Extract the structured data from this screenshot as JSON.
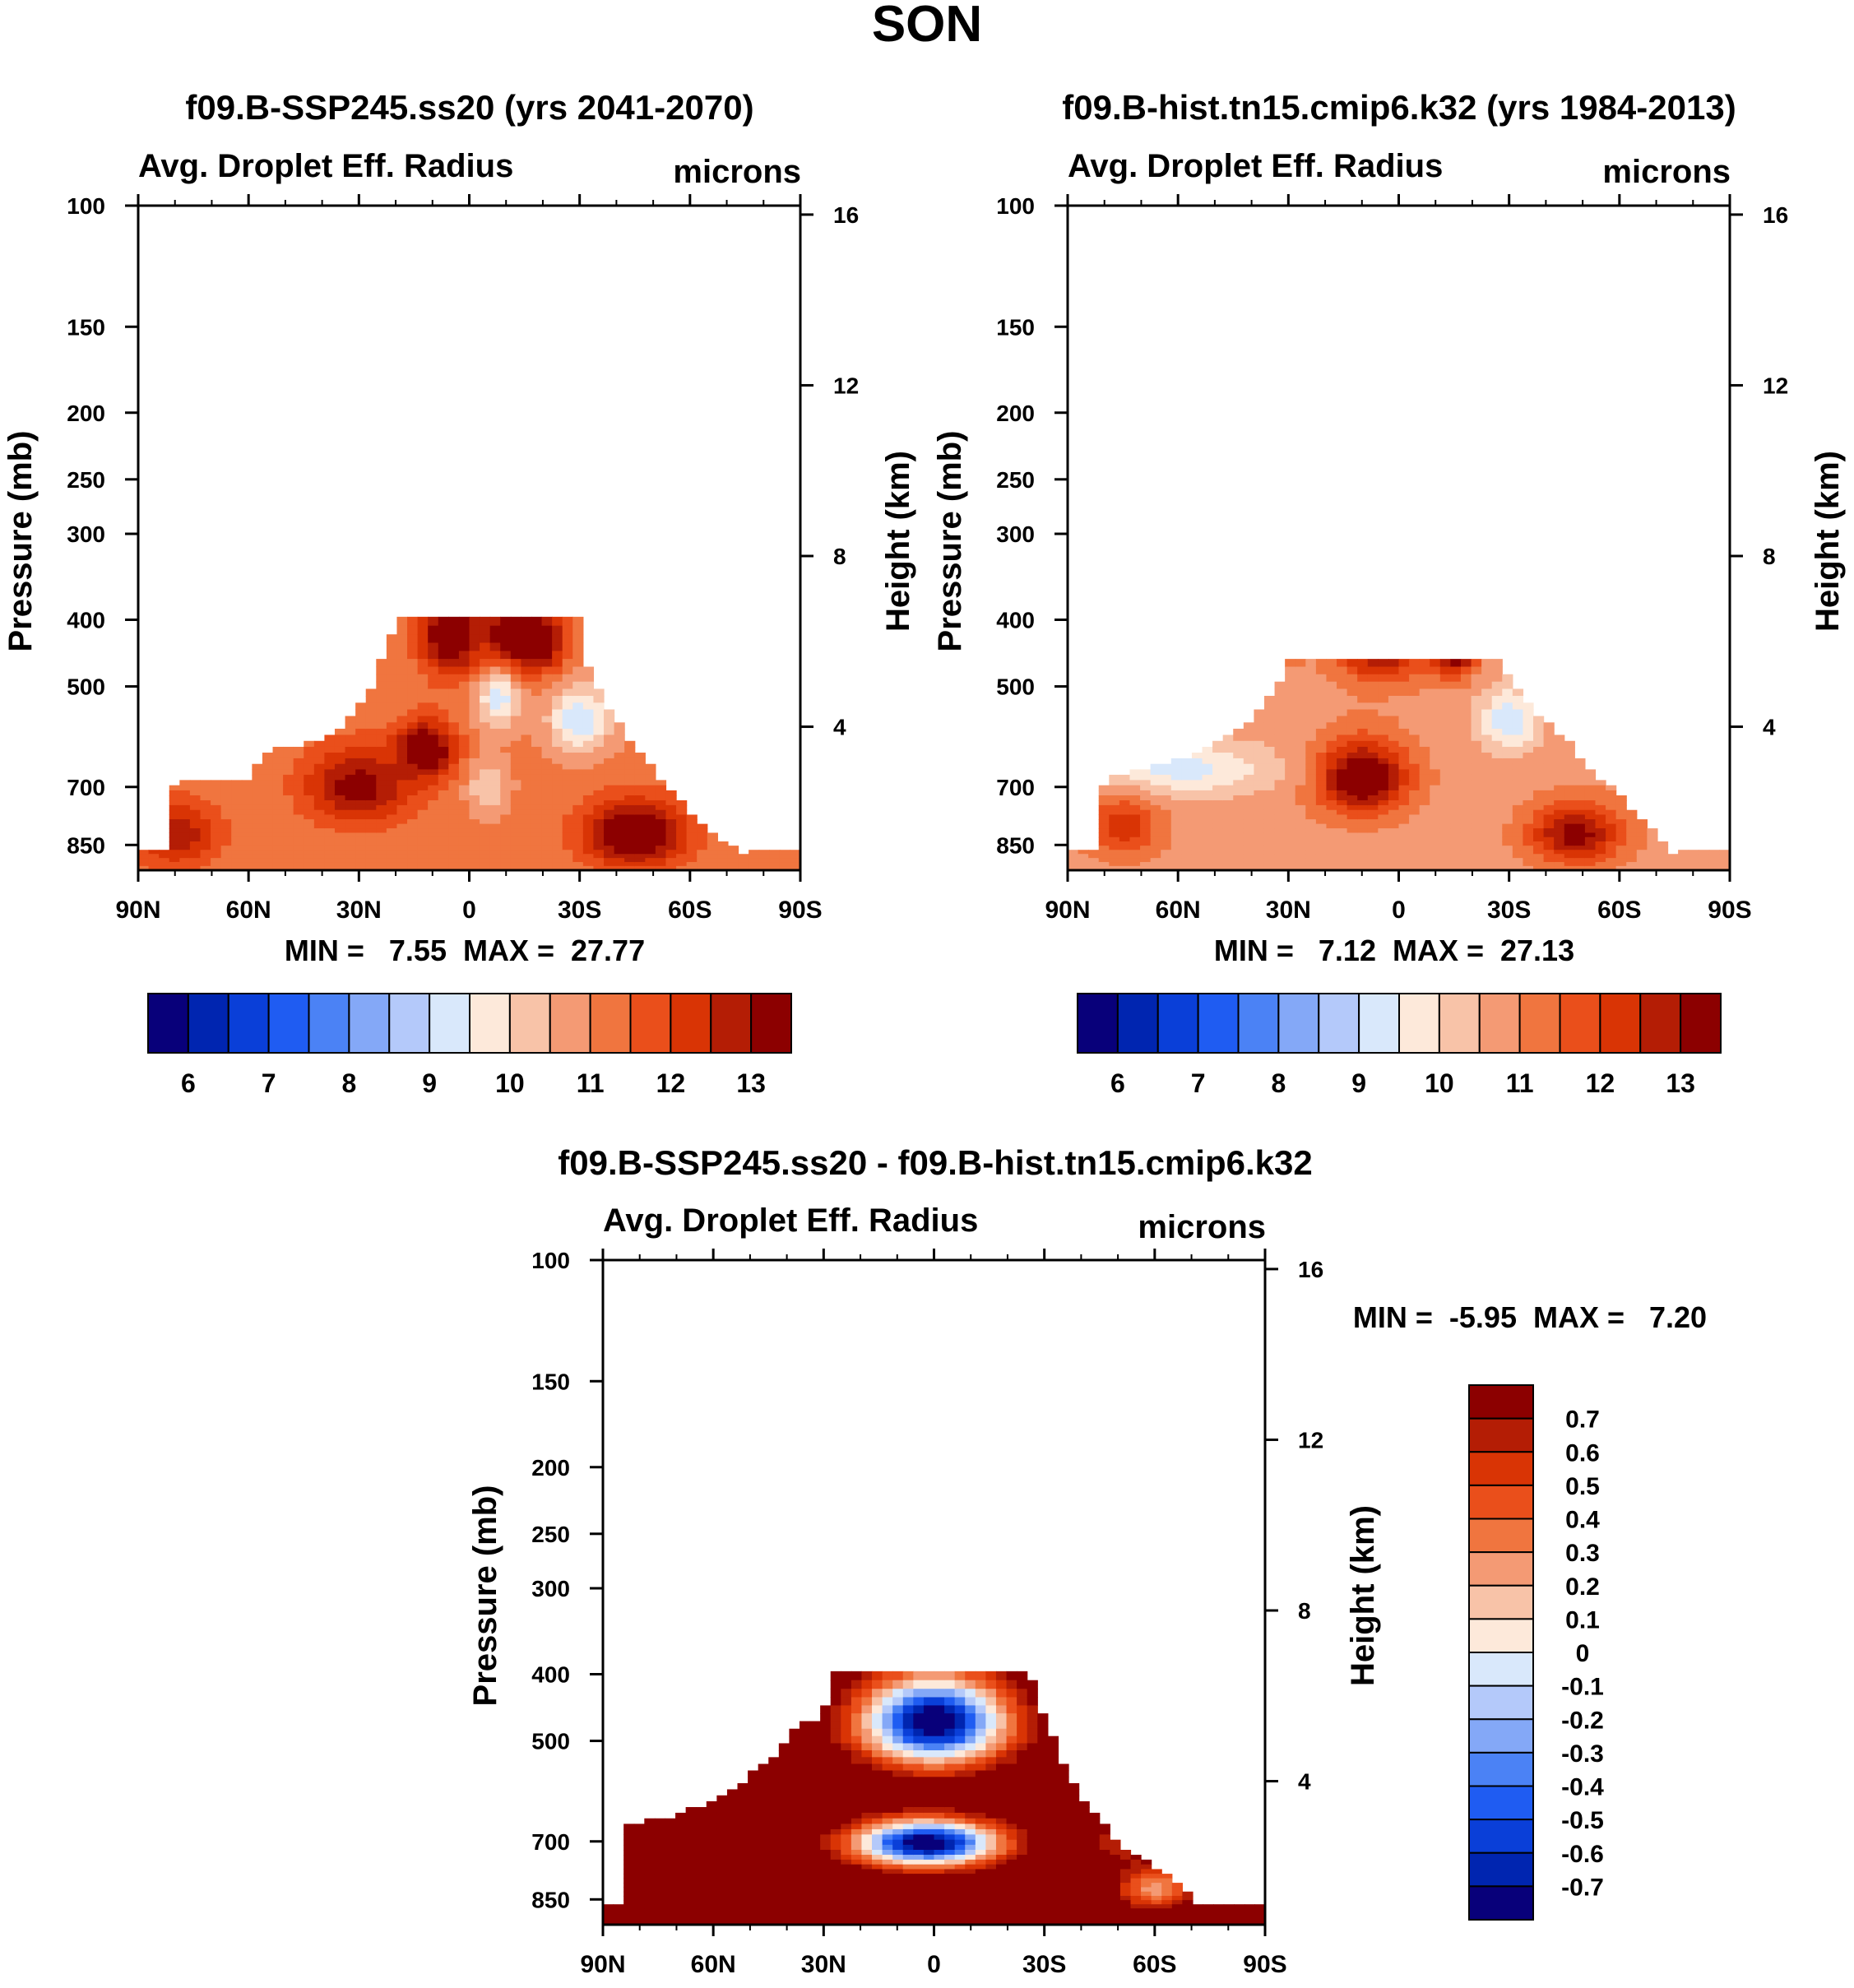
{
  "figure": {
    "title": "SON"
  },
  "chart_data": [
    {
      "type": "heatmap",
      "title": "f09.B-SSP245.ss20 (yrs 2041-2070)",
      "subtitle_left": "Avg. Droplet Eff. Radius",
      "subtitle_right": "microns",
      "ylabel": "Pressure (mb)",
      "ylabel_right": "Height (km)",
      "x_ticks": [
        "90N",
        "60N",
        "30N",
        "0",
        "30S",
        "60S",
        "90S"
      ],
      "y_ticks": [
        "100",
        "150",
        "200",
        "250",
        "300",
        "400",
        "500",
        "700",
        "850"
      ],
      "y_ticks_right": [
        "16",
        "12",
        "8",
        "4"
      ],
      "min_max": "MIN =   7.55  MAX =  27.77",
      "colorbar": {
        "orientation": "horizontal",
        "colors": [
          "#08007a",
          "#0025b0",
          "#0a3fd8",
          "#1f5cf2",
          "#4b82f5",
          "#84a8f7",
          "#b4c9fa",
          "#d9e8fb",
          "#fde9da",
          "#f8c3a8",
          "#f49a74",
          "#f0753f",
          "#ea4f1b",
          "#d93405",
          "#b41d05",
          "#8c0000"
        ],
        "labels": [
          "6",
          "7",
          "8",
          "9",
          "10",
          "11",
          "12",
          "13"
        ]
      },
      "field": {
        "lat_range": [
          90,
          -90
        ],
        "top_pressure_mb": 360,
        "surface_cutoff_pressure": [
          [
            90,
            890
          ],
          [
            82,
            890
          ],
          [
            80,
            680
          ],
          [
            60,
            680
          ],
          [
            55,
            620
          ],
          [
            40,
            600
          ],
          [
            35,
            570
          ],
          [
            28,
            520
          ],
          [
            24,
            460
          ],
          [
            20,
            400
          ],
          [
            -30,
            400
          ],
          [
            -32,
            460
          ],
          [
            -36,
            520
          ],
          [
            -40,
            560
          ],
          [
            -44,
            600
          ],
          [
            -50,
            660
          ],
          [
            -56,
            720
          ],
          [
            -60,
            760
          ],
          [
            -66,
            810
          ],
          [
            -72,
            860
          ],
          [
            -76,
            890
          ]
        ],
        "anomalies": [
          {
            "lat": 5,
            "p": 420,
            "w": 8,
            "h": 60,
            "v": 13.5
          },
          {
            "lat": -12,
            "p": 420,
            "w": 8,
            "h": 60,
            "v": 13.5
          },
          {
            "lat": -20,
            "p": 430,
            "w": 6,
            "h": 40,
            "v": 13.2
          },
          {
            "lat": -8,
            "p": 520,
            "w": 6,
            "h": 50,
            "v": 8.8
          },
          {
            "lat": -30,
            "p": 560,
            "w": 8,
            "h": 60,
            "v": 8.5
          },
          {
            "lat": 12,
            "p": 620,
            "w": 8,
            "h": 60,
            "v": 13.5
          },
          {
            "lat": 30,
            "p": 700,
            "w": 15,
            "h": 90,
            "v": 12.8
          },
          {
            "lat": 80,
            "p": 820,
            "w": 12,
            "h": 90,
            "v": 12.4
          },
          {
            "lat": -45,
            "p": 820,
            "w": 14,
            "h": 90,
            "v": 13.5
          },
          {
            "lat": -5,
            "p": 700,
            "w": 5,
            "h": 60,
            "v": 9.5
          }
        ],
        "base_value": 10.6
      }
    },
    {
      "type": "heatmap",
      "title": "f09.B-hist.tn15.cmip6.k32 (yrs 1984-2013)",
      "subtitle_left": "Avg. Droplet Eff. Radius",
      "subtitle_right": "microns",
      "ylabel": "Pressure (mb)",
      "ylabel_right": "Height (km)",
      "x_ticks": [
        "90N",
        "60N",
        "30N",
        "0",
        "30S",
        "60S",
        "90S"
      ],
      "y_ticks": [
        "100",
        "150",
        "200",
        "250",
        "300",
        "400",
        "500",
        "700",
        "850"
      ],
      "y_ticks_right": [
        "16",
        "12",
        "8",
        "4"
      ],
      "min_max": "MIN =   7.12  MAX =  27.13",
      "colorbar": {
        "orientation": "horizontal",
        "colors": [
          "#08007a",
          "#0025b0",
          "#0a3fd8",
          "#1f5cf2",
          "#4b82f5",
          "#84a8f7",
          "#b4c9fa",
          "#d9e8fb",
          "#fde9da",
          "#f8c3a8",
          "#f49a74",
          "#f0753f",
          "#ea4f1b",
          "#d93405",
          "#b41d05",
          "#8c0000"
        ],
        "labels": [
          "6",
          "7",
          "8",
          "9",
          "10",
          "11",
          "12",
          "13"
        ]
      },
      "field": {
        "lat_range": [
          90,
          -90
        ],
        "top_pressure_mb": 360,
        "surface_cutoff_pressure": [
          [
            90,
            890
          ],
          [
            82,
            890
          ],
          [
            80,
            680
          ],
          [
            60,
            640
          ],
          [
            50,
            600
          ],
          [
            40,
            560
          ],
          [
            35,
            520
          ],
          [
            30,
            460
          ],
          [
            -28,
            460
          ],
          [
            -34,
            520
          ],
          [
            -40,
            560
          ],
          [
            -46,
            600
          ],
          [
            -52,
            660
          ],
          [
            -58,
            700
          ],
          [
            -64,
            760
          ],
          [
            -70,
            820
          ],
          [
            -76,
            890
          ]
        ],
        "anomalies": [
          {
            "lat": 5,
            "p": 420,
            "w": 12,
            "h": 60,
            "v": 13.5
          },
          {
            "lat": 30,
            "p": 400,
            "w": 4,
            "h": 40,
            "v": 13.5
          },
          {
            "lat": -15,
            "p": 440,
            "w": 6,
            "h": 40,
            "v": 13.5
          },
          {
            "lat": 10,
            "p": 680,
            "w": 12,
            "h": 80,
            "v": 13.5
          },
          {
            "lat": -48,
            "p": 820,
            "w": 12,
            "h": 80,
            "v": 12.8
          },
          {
            "lat": 60,
            "p": 660,
            "w": 25,
            "h": 60,
            "v": 8.8
          },
          {
            "lat": -30,
            "p": 560,
            "w": 8,
            "h": 60,
            "v": 8.6
          },
          {
            "lat": 75,
            "p": 800,
            "w": 10,
            "h": 80,
            "v": 11.8
          }
        ],
        "base_value": 10.3
      }
    },
    {
      "type": "heatmap",
      "title": "f09.B-SSP245.ss20 - f09.B-hist.tn15.cmip6.k32",
      "subtitle_left": "Avg. Droplet Eff. Radius",
      "subtitle_right": "microns",
      "ylabel": "Pressure (mb)",
      "ylabel_right": "Height (km)",
      "x_ticks": [
        "90N",
        "60N",
        "30N",
        "0",
        "30S",
        "60S",
        "90S"
      ],
      "y_ticks": [
        "100",
        "150",
        "200",
        "250",
        "300",
        "400",
        "500",
        "700",
        "850"
      ],
      "y_ticks_right": [
        "16",
        "12",
        "8",
        "4"
      ],
      "min_max": "MIN =  -5.95  MAX =   7.20",
      "colorbar": {
        "orientation": "vertical",
        "colors": [
          "#8c0000",
          "#b41d05",
          "#d93405",
          "#ea4f1b",
          "#f0753f",
          "#f49a74",
          "#f8c3a8",
          "#fde9da",
          "#d9e8fb",
          "#b4c9fa",
          "#84a8f7",
          "#4b82f5",
          "#1f5cf2",
          "#0a3fd8",
          "#0025b0",
          "#08007a"
        ],
        "labels": [
          "0.7",
          "0.6",
          "0.5",
          "0.4",
          "0.3",
          "0.2",
          "0.1",
          "0",
          "-0.1",
          "-0.2",
          "-0.3",
          "-0.4",
          "-0.5",
          "-0.6",
          "-0.7"
        ]
      },
      "field": {
        "lat_range": [
          90,
          -90
        ],
        "top_pressure_mb": 360,
        "surface_cutoff_pressure": [
          [
            90,
            890
          ],
          [
            86,
            890
          ],
          [
            84,
            660
          ],
          [
            70,
            640
          ],
          [
            56,
            600
          ],
          [
            50,
            560
          ],
          [
            42,
            520
          ],
          [
            38,
            480
          ],
          [
            30,
            460
          ],
          [
            28,
            400
          ],
          [
            -26,
            400
          ],
          [
            -30,
            460
          ],
          [
            -34,
            520
          ],
          [
            -40,
            600
          ],
          [
            -46,
            660
          ],
          [
            -52,
            720
          ],
          [
            -60,
            760
          ],
          [
            -68,
            820
          ],
          [
            -74,
            890
          ]
        ],
        "anomalies": [
          {
            "lat": 0,
            "p": 470,
            "w": 20,
            "h": 70,
            "v": -0.9
          },
          {
            "lat": 2,
            "p": 705,
            "w": 20,
            "h": 55,
            "v": -0.9
          },
          {
            "lat": -50,
            "p": 700,
            "w": 10,
            "h": 70,
            "v": 0.6
          },
          {
            "lat": -60,
            "p": 820,
            "w": 10,
            "h": 60,
            "v": 0.2
          }
        ],
        "base_value": 0.9,
        "north_of_30N_value": 0.9
      }
    }
  ]
}
